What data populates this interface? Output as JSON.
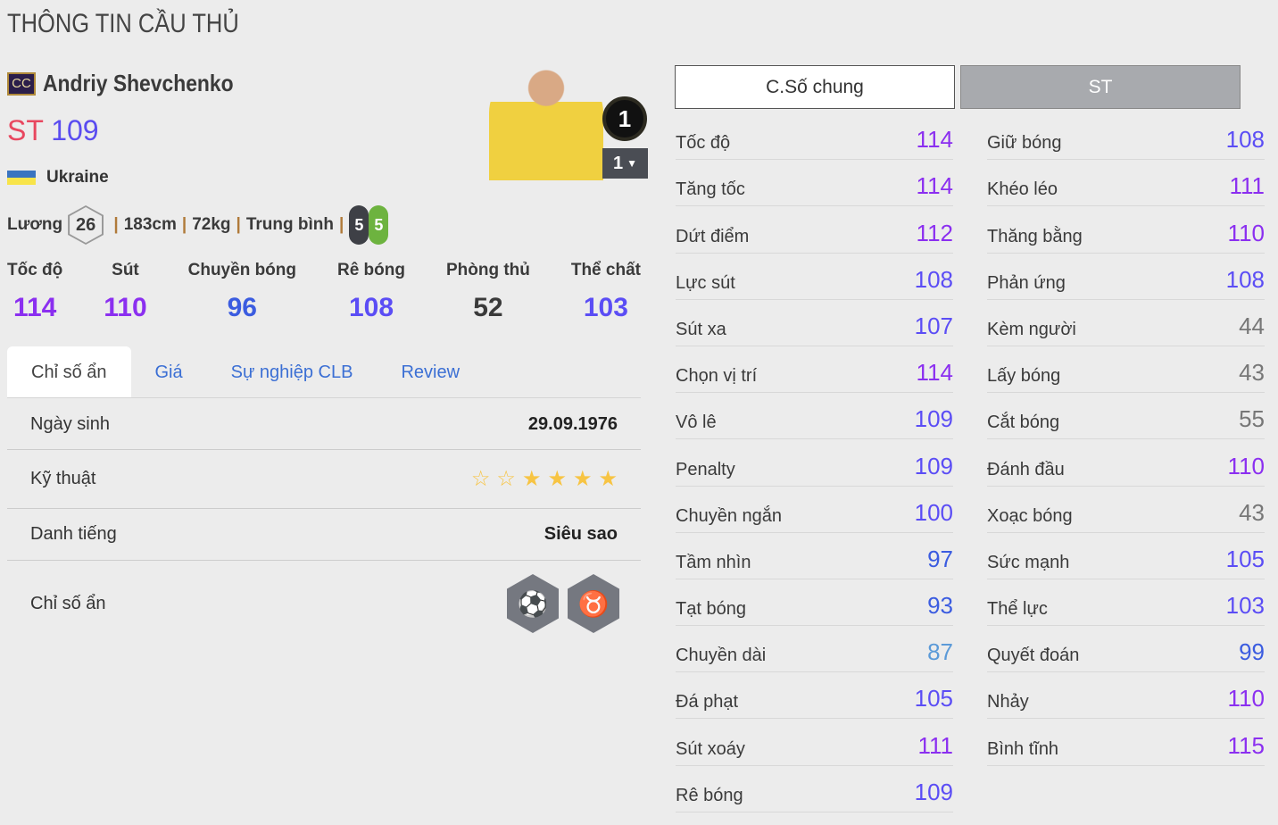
{
  "title": "THÔNG TIN CẦU THỦ",
  "player": {
    "season_badge": "CC",
    "name": "Andriy Shevchenko",
    "position": "ST",
    "ovr": "109",
    "nation": "Ukraine",
    "salary_label": "Lương",
    "salary": "26",
    "height": "183cm",
    "weight": "72kg",
    "body_type": "Trung bình",
    "left_foot": "5",
    "right_foot": "5",
    "team_color_badge": "1",
    "upgrade_level": "1"
  },
  "summary": [
    {
      "label": "Tốc độ",
      "value": 114
    },
    {
      "label": "Sút",
      "value": 110
    },
    {
      "label": "Chuyền bóng",
      "value": 96
    },
    {
      "label": "Rê bóng",
      "value": 108
    },
    {
      "label": "Phòng thủ",
      "value": 52
    },
    {
      "label": "Thể chất",
      "value": 103
    }
  ],
  "tabs": [
    "Chỉ số ẩn",
    "Giá",
    "Sự nghiệp CLB",
    "Review"
  ],
  "info": {
    "birth_label": "Ngày sinh",
    "birth": "29.09.1976",
    "skill_label": "Kỹ thuật",
    "skill_stars": 4,
    "skill_max": 6,
    "rep_label": "Danh tiếng",
    "rep": "Siêu sao",
    "hidden_label": "Chỉ số ẩn",
    "hidden_traits": [
      "speed-dribbler-icon",
      "bull-icon"
    ]
  },
  "buttons": {
    "general": "C.Số chung",
    "position": "ST"
  },
  "stats_left": [
    [
      "Tốc độ",
      114
    ],
    [
      "Tăng tốc",
      114
    ],
    [
      "Dứt điểm",
      112
    ],
    [
      "Lực sút",
      108
    ],
    [
      "Sút xa",
      107
    ],
    [
      "Chọn vị trí",
      114
    ],
    [
      "Vô lê",
      109
    ],
    [
      "Penalty",
      109
    ],
    [
      "Chuyền ngắn",
      100
    ],
    [
      "Tầm nhìn",
      97
    ],
    [
      "Tạt bóng",
      93
    ],
    [
      "Chuyền dài",
      87
    ],
    [
      "Đá phạt",
      105
    ],
    [
      "Sút xoáy",
      111
    ],
    [
      "Rê bóng",
      109
    ]
  ],
  "stats_right": [
    [
      "Giữ bóng",
      108
    ],
    [
      "Khéo léo",
      111
    ],
    [
      "Thăng bằng",
      110
    ],
    [
      "Phản ứng",
      108
    ],
    [
      "Kèm người",
      44
    ],
    [
      "Lấy bóng",
      43
    ],
    [
      "Cắt bóng",
      55
    ],
    [
      "Đánh đầu",
      110
    ],
    [
      "Xoạc bóng",
      43
    ],
    [
      "Sức mạnh",
      105
    ],
    [
      "Thể lực",
      103
    ],
    [
      "Quyết đoán",
      99
    ],
    [
      "Nhảy",
      110
    ],
    [
      "Bình tĩnh",
      115
    ]
  ],
  "colors": {
    "ovr_110": "#8b2ff0",
    "ovr_100": "#5b4df5",
    "ovr_90": "#3b5ce0",
    "ovr_80": "#5b9ad8",
    "low": "#777777",
    "mid": "#3a3a3a"
  }
}
